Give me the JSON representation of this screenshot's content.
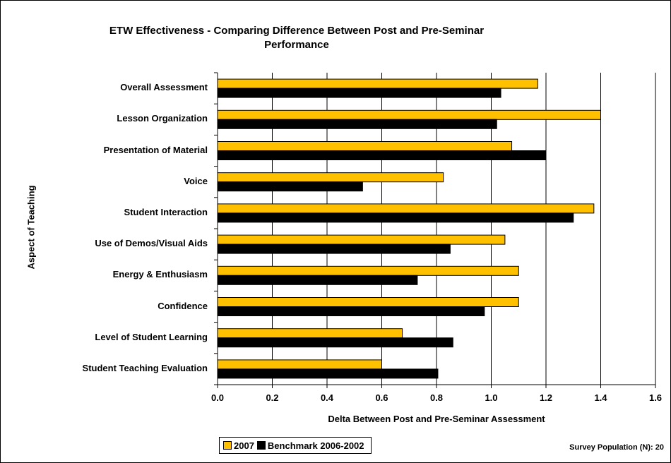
{
  "chart_data": {
    "type": "bar",
    "orientation": "horizontal",
    "title": "ETW Effectiveness - Comparing Difference Between Post and Pre-Seminar Performance",
    "title_lines": [
      "ETW Effectiveness - Comparing Difference Between Post and Pre-Seminar",
      "Performance"
    ],
    "xlabel": "Delta Between Post and Pre-Seminar Assessment",
    "ylabel": "Aspect of Teaching",
    "xlim": [
      0,
      1.6
    ],
    "xticks": [
      "0.0",
      "0.2",
      "0.4",
      "0.6",
      "0.8",
      "1.0",
      "1.2",
      "1.4",
      "1.6"
    ],
    "grid": "vertical",
    "legend_position": "bottom-left",
    "categories": [
      "Overall Assessment",
      "Lesson Organization",
      "Presentation of Material",
      "Voice",
      "Student Interaction",
      "Use of Demos/Visual Aids",
      "Energy & Enthusiasm",
      "Confidence",
      "Level of Student Learning",
      "Student Teaching Evaluation"
    ],
    "series": [
      {
        "name": "2007",
        "color": "#FFC000",
        "values": [
          1.17,
          1.4,
          1.075,
          0.825,
          1.375,
          1.05,
          1.1,
          1.1,
          0.675,
          0.6
        ]
      },
      {
        "name": "Benchmark 2006-2002",
        "color": "#000000",
        "values": [
          1.035,
          1.02,
          1.2,
          0.53,
          1.3,
          0.85,
          0.73,
          0.975,
          0.86,
          0.805
        ]
      }
    ],
    "annotation": "Survey Population (N): 20"
  }
}
